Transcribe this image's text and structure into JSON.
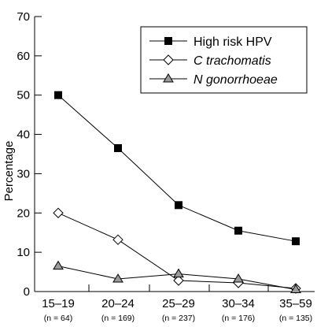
{
  "chart_data": {
    "type": "line",
    "title": "",
    "xlabel": "",
    "ylabel": "Percentage",
    "ylim": [
      0,
      70
    ],
    "yticks": [
      0,
      10,
      20,
      30,
      40,
      50,
      60,
      70
    ],
    "grid": false,
    "legend_position": "top-right",
    "categories": [
      "15–19",
      "20–24",
      "25–29",
      "30–34",
      "35–59"
    ],
    "category_counts": [
      "(n = 64)",
      "(n = 169)",
      "(n = 237)",
      "(n = 176)",
      "(n = 135)"
    ],
    "series": [
      {
        "name": "High risk HPV",
        "marker": "filled-square",
        "italic": false,
        "values": [
          50,
          36.5,
          22,
          15.5,
          12.8
        ]
      },
      {
        "name": "C trachomatis",
        "marker": "open-diamond",
        "italic": true,
        "values": [
          20,
          13.2,
          2.8,
          2.2,
          0.8
        ]
      },
      {
        "name": "N gonorrhoeae",
        "marker": "grey-triangle",
        "italic": true,
        "values": [
          6.5,
          3.2,
          4.5,
          3.2,
          0.5
        ]
      }
    ]
  }
}
